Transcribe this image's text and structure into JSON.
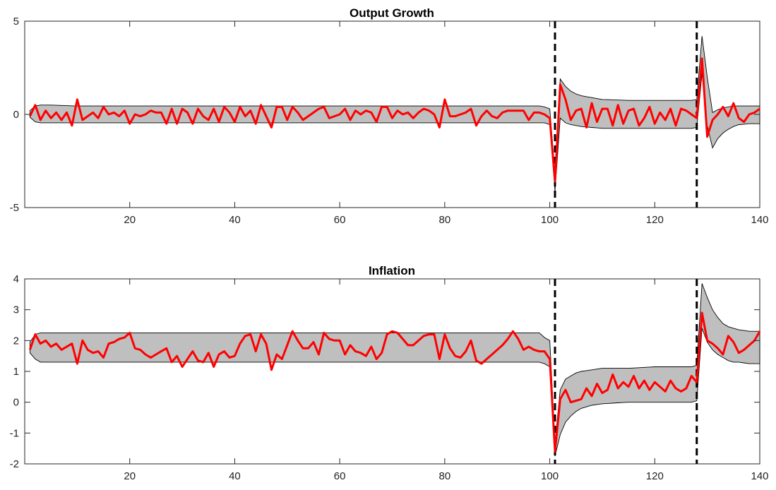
{
  "chart_data": [
    {
      "type": "line",
      "title": "Output Growth",
      "xlabel": "",
      "ylabel": "",
      "xlim": [
        0,
        140
      ],
      "ylim": [
        -5,
        5
      ],
      "xticks": [
        20,
        40,
        60,
        80,
        100,
        120,
        140
      ],
      "yticks": [
        -5,
        0,
        5
      ],
      "grid": false,
      "vlines": [
        101,
        128
      ],
      "band_color": "#bfbfbf",
      "line_color": "#ff0000",
      "series": [
        {
          "role": "median",
          "x": [
            1,
            2,
            3,
            4,
            5,
            6,
            7,
            8,
            9,
            10,
            11,
            12,
            13,
            14,
            15,
            16,
            17,
            18,
            19,
            20,
            21,
            22,
            23,
            24,
            25,
            26,
            27,
            28,
            29,
            30,
            31,
            32,
            33,
            34,
            35,
            36,
            37,
            38,
            39,
            40,
            41,
            42,
            43,
            44,
            45,
            46,
            47,
            48,
            49,
            50,
            51,
            52,
            53,
            54,
            55,
            56,
            57,
            58,
            59,
            60,
            61,
            62,
            63,
            64,
            65,
            66,
            67,
            68,
            69,
            70,
            71,
            72,
            73,
            74,
            75,
            76,
            77,
            78,
            79,
            80,
            81,
            82,
            83,
            84,
            85,
            86,
            87,
            88,
            89,
            90,
            91,
            92,
            93,
            94,
            95,
            96,
            97,
            98,
            99,
            100,
            101,
            102,
            103,
            104,
            105,
            106,
            107,
            108,
            109,
            110,
            111,
            112,
            113,
            114,
            115,
            116,
            117,
            118,
            119,
            120,
            121,
            122,
            123,
            124,
            125,
            126,
            127,
            128,
            129,
            130,
            131,
            132,
            133,
            134,
            135,
            136,
            137,
            138,
            139,
            140
          ],
          "values": [
            -0.1,
            0.5,
            -0.3,
            0.2,
            -0.2,
            0.1,
            -0.3,
            0.1,
            -0.6,
            0.8,
            -0.3,
            -0.1,
            0.1,
            -0.2,
            0.4,
            0.0,
            0.1,
            -0.1,
            0.2,
            -0.5,
            0.0,
            -0.1,
            0.0,
            0.2,
            0.1,
            0.1,
            -0.5,
            0.3,
            -0.5,
            0.3,
            0.1,
            -0.5,
            0.3,
            -0.1,
            -0.3,
            0.3,
            -0.4,
            0.4,
            0.1,
            -0.4,
            0.4,
            -0.1,
            0.2,
            -0.5,
            0.5,
            -0.1,
            -0.7,
            0.4,
            0.4,
            -0.3,
            0.4,
            0.1,
            -0.3,
            -0.1,
            0.1,
            0.3,
            0.4,
            -0.2,
            -0.1,
            0.0,
            0.3,
            -0.3,
            0.2,
            0.0,
            0.2,
            0.1,
            -0.4,
            0.4,
            0.4,
            -0.2,
            0.2,
            0.0,
            0.1,
            -0.2,
            0.1,
            0.3,
            0.2,
            0.0,
            -0.7,
            0.8,
            -0.1,
            -0.1,
            0.0,
            0.1,
            0.3,
            -0.6,
            -0.1,
            0.2,
            -0.1,
            -0.2,
            0.1,
            0.2,
            0.2,
            0.2,
            0.2,
            -0.3,
            0.1,
            0.1,
            0.0,
            -0.2,
            -3.6,
            1.6,
            0.8,
            -0.3,
            0.2,
            0.3,
            -0.7,
            0.6,
            -0.4,
            0.3,
            0.3,
            -0.6,
            0.5,
            -0.5,
            0.2,
            0.3,
            -0.6,
            -0.2,
            0.4,
            -0.5,
            0.1,
            -0.3,
            0.3,
            -0.6,
            0.3,
            0.2,
            0.0,
            -0.2,
            3.0,
            -1.2,
            -0.3,
            0.0,
            0.4,
            -0.1,
            0.6,
            -0.2,
            -0.4,
            0.0,
            0.1,
            0.3
          ]
        },
        {
          "role": "band_upper",
          "x": [
            1,
            2,
            3,
            5,
            10,
            20,
            40,
            60,
            80,
            90,
            95,
            98,
            99,
            100,
            101,
            102,
            103,
            104,
            105,
            106,
            108,
            110,
            115,
            120,
            125,
            127,
            128,
            129,
            130,
            131,
            132,
            133,
            134,
            135,
            136,
            138,
            140
          ],
          "values": [
            0.2,
            0.45,
            0.5,
            0.5,
            0.45,
            0.45,
            0.45,
            0.45,
            0.45,
            0.45,
            0.45,
            0.45,
            0.4,
            0.3,
            -3.2,
            1.9,
            1.5,
            1.25,
            1.1,
            1.0,
            0.9,
            0.8,
            0.75,
            0.75,
            0.75,
            0.75,
            0.8,
            4.2,
            2.0,
            0.1,
            0.25,
            0.35,
            0.4,
            0.45,
            0.45,
            0.45,
            0.45
          ]
        },
        {
          "role": "band_lower",
          "x": [
            1,
            2,
            3,
            5,
            10,
            20,
            40,
            60,
            80,
            90,
            95,
            98,
            99,
            100,
            101,
            102,
            103,
            104,
            105,
            106,
            108,
            110,
            115,
            120,
            125,
            127,
            128,
            129,
            130,
            131,
            132,
            133,
            134,
            135,
            136,
            138,
            140
          ],
          "values": [
            -0.15,
            -0.4,
            -0.45,
            -0.45,
            -0.45,
            -0.45,
            -0.45,
            -0.45,
            -0.45,
            -0.45,
            -0.45,
            -0.45,
            -0.45,
            -0.55,
            -4.1,
            -0.2,
            -0.45,
            -0.55,
            -0.6,
            -0.65,
            -0.7,
            -0.75,
            -0.75,
            -0.75,
            -0.75,
            -0.75,
            -0.7,
            2.2,
            -0.6,
            -1.8,
            -1.3,
            -1.0,
            -0.8,
            -0.65,
            -0.55,
            -0.5,
            -0.5
          ]
        }
      ]
    },
    {
      "type": "line",
      "title": "Inflation",
      "xlabel": "",
      "ylabel": "",
      "xlim": [
        0,
        140
      ],
      "ylim": [
        -2,
        4
      ],
      "xticks": [
        20,
        40,
        60,
        80,
        100,
        120,
        140
      ],
      "yticks": [
        -2,
        -1,
        0,
        1,
        2,
        3,
        4
      ],
      "grid": false,
      "vlines": [
        101,
        128
      ],
      "band_color": "#bfbfbf",
      "line_color": "#ff0000",
      "series": [
        {
          "role": "median",
          "x": [
            1,
            2,
            3,
            4,
            5,
            6,
            7,
            8,
            9,
            10,
            11,
            12,
            13,
            14,
            15,
            16,
            17,
            18,
            19,
            20,
            21,
            22,
            23,
            24,
            25,
            26,
            27,
            28,
            29,
            30,
            31,
            32,
            33,
            34,
            35,
            36,
            37,
            38,
            39,
            40,
            41,
            42,
            43,
            44,
            45,
            46,
            47,
            48,
            49,
            50,
            51,
            52,
            53,
            54,
            55,
            56,
            57,
            58,
            59,
            60,
            61,
            62,
            63,
            64,
            65,
            66,
            67,
            68,
            69,
            70,
            71,
            72,
            73,
            74,
            75,
            76,
            77,
            78,
            79,
            80,
            81,
            82,
            83,
            84,
            85,
            86,
            87,
            88,
            89,
            90,
            91,
            92,
            93,
            94,
            95,
            96,
            97,
            98,
            99,
            100,
            101,
            102,
            103,
            104,
            105,
            106,
            107,
            108,
            109,
            110,
            111,
            112,
            113,
            114,
            115,
            116,
            117,
            118,
            119,
            120,
            121,
            122,
            123,
            124,
            125,
            126,
            127,
            128,
            129,
            130,
            131,
            132,
            133,
            134,
            135,
            136,
            137,
            138,
            139,
            140
          ],
          "values": [
            1.7,
            2.2,
            1.9,
            2.0,
            1.8,
            1.9,
            1.7,
            1.8,
            1.9,
            1.25,
            2.0,
            1.7,
            1.6,
            1.65,
            1.45,
            1.9,
            1.95,
            2.05,
            2.1,
            2.25,
            1.75,
            1.7,
            1.55,
            1.45,
            1.55,
            1.65,
            1.75,
            1.3,
            1.5,
            1.15,
            1.4,
            1.65,
            1.35,
            1.3,
            1.6,
            1.15,
            1.55,
            1.65,
            1.45,
            1.5,
            1.9,
            2.15,
            2.2,
            1.65,
            2.2,
            1.9,
            1.05,
            1.55,
            1.4,
            1.85,
            2.3,
            2.0,
            1.75,
            1.75,
            1.95,
            1.55,
            2.25,
            2.05,
            2.0,
            2.0,
            1.55,
            1.85,
            1.65,
            1.6,
            1.5,
            1.8,
            1.4,
            1.6,
            2.2,
            2.3,
            2.25,
            2.05,
            1.85,
            1.85,
            2.0,
            2.15,
            2.2,
            2.2,
            1.4,
            2.2,
            1.75,
            1.5,
            1.45,
            1.65,
            2.0,
            1.35,
            1.25,
            1.4,
            1.55,
            1.7,
            1.85,
            2.05,
            2.3,
            2.05,
            1.7,
            1.8,
            1.7,
            1.65,
            1.65,
            1.4,
            -1.6,
            0.1,
            0.4,
            0.0,
            0.05,
            0.1,
            0.45,
            0.2,
            0.6,
            0.3,
            0.4,
            0.9,
            0.45,
            0.65,
            0.5,
            0.85,
            0.45,
            0.7,
            0.4,
            0.65,
            0.5,
            0.35,
            0.7,
            0.45,
            0.35,
            0.45,
            0.85,
            0.65,
            2.9,
            2.0,
            1.9,
            1.75,
            1.55,
            2.15,
            1.95,
            1.6,
            1.7,
            1.85,
            2.0,
            2.3
          ]
        },
        {
          "role": "band_upper",
          "x": [
            1,
            2,
            3,
            5,
            10,
            20,
            40,
            60,
            80,
            90,
            95,
            98,
            99,
            100,
            101,
            102,
            103,
            104,
            105,
            106,
            108,
            110,
            115,
            120,
            125,
            127,
            128,
            129,
            130,
            131,
            132,
            133,
            134,
            135,
            136,
            138,
            140
          ],
          "values": [
            1.95,
            2.2,
            2.25,
            2.25,
            2.25,
            2.25,
            2.25,
            2.25,
            2.25,
            2.25,
            2.25,
            2.25,
            2.1,
            2.0,
            -1.3,
            0.4,
            0.75,
            0.85,
            0.95,
            1.0,
            1.05,
            1.1,
            1.1,
            1.15,
            1.15,
            1.15,
            1.2,
            3.85,
            3.4,
            3.0,
            2.75,
            2.55,
            2.45,
            2.4,
            2.35,
            2.3,
            2.3
          ]
        },
        {
          "role": "band_lower",
          "x": [
            1,
            2,
            3,
            5,
            10,
            20,
            40,
            60,
            80,
            90,
            95,
            98,
            99,
            100,
            101,
            102,
            103,
            104,
            105,
            106,
            108,
            110,
            115,
            120,
            125,
            127,
            128,
            129,
            130,
            131,
            132,
            133,
            134,
            135,
            136,
            138,
            140
          ],
          "values": [
            1.6,
            1.4,
            1.3,
            1.3,
            1.3,
            1.3,
            1.3,
            1.3,
            1.3,
            1.3,
            1.3,
            1.3,
            1.25,
            1.15,
            -1.75,
            -1.05,
            -0.65,
            -0.45,
            -0.3,
            -0.2,
            -0.1,
            -0.05,
            0.0,
            0.0,
            0.0,
            0.0,
            0.05,
            2.4,
            1.95,
            1.7,
            1.55,
            1.45,
            1.35,
            1.3,
            1.3,
            1.25,
            1.25
          ]
        }
      ]
    }
  ]
}
